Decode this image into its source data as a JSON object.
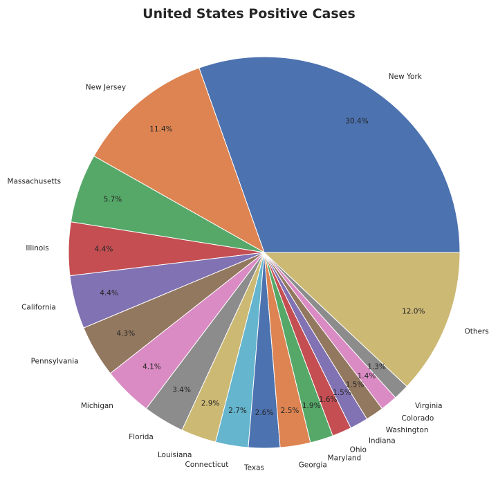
{
  "chart_data": {
    "type": "pie",
    "title": "United States Positive Cases",
    "start_angle_deg": 0,
    "direction": "counterclockwise",
    "slices": [
      {
        "label": "New York",
        "value": 30.4,
        "pct_label": "30.4%",
        "color": "#4c72b0"
      },
      {
        "label": "New Jersey",
        "value": 11.4,
        "pct_label": "11.4%",
        "color": "#dd8452"
      },
      {
        "label": "Massachusetts",
        "value": 5.7,
        "pct_label": "5.7%",
        "color": "#55a868"
      },
      {
        "label": "Illinois",
        "value": 4.4,
        "pct_label": "4.4%",
        "color": "#c44e52"
      },
      {
        "label": "California",
        "value": 4.4,
        "pct_label": "4.4%",
        "color": "#8172b3"
      },
      {
        "label": "Pennsylvania",
        "value": 4.3,
        "pct_label": "4.3%",
        "color": "#937860"
      },
      {
        "label": "Michigan",
        "value": 4.1,
        "pct_label": "4.1%",
        "color": "#da8bc3"
      },
      {
        "label": "Florida",
        "value": 3.4,
        "pct_label": "3.4%",
        "color": "#8c8c8c"
      },
      {
        "label": "Louisiana",
        "value": 2.9,
        "pct_label": "2.9%",
        "color": "#ccb974"
      },
      {
        "label": "Connecticut",
        "value": 2.7,
        "pct_label": "2.7%",
        "color": "#64b5cd"
      },
      {
        "label": "Texas",
        "value": 2.6,
        "pct_label": "2.6%",
        "color": "#4c72b0"
      },
      {
        "label": "Georgia",
        "value": 2.5,
        "pct_label": "2.5%",
        "color": "#dd8452"
      },
      {
        "label": "Maryland",
        "value": 1.9,
        "pct_label": "1.9%",
        "color": "#55a868"
      },
      {
        "label": "Ohio",
        "value": 1.6,
        "pct_label": "1.6%",
        "color": "#c44e52"
      },
      {
        "label": "Indiana",
        "value": 1.5,
        "pct_label": "1.5%",
        "color": "#8172b3"
      },
      {
        "label": "Washington",
        "value": 1.5,
        "pct_label": "1.5%",
        "color": "#937860"
      },
      {
        "label": "Colorado",
        "value": 1.4,
        "pct_label": "1.4%",
        "color": "#da8bc3"
      },
      {
        "label": "Virginia",
        "value": 1.3,
        "pct_label": "1.3%",
        "color": "#8c8c8c"
      },
      {
        "label": "Others",
        "value": 12.0,
        "pct_label": "12.0%",
        "color": "#ccb974"
      }
    ]
  }
}
